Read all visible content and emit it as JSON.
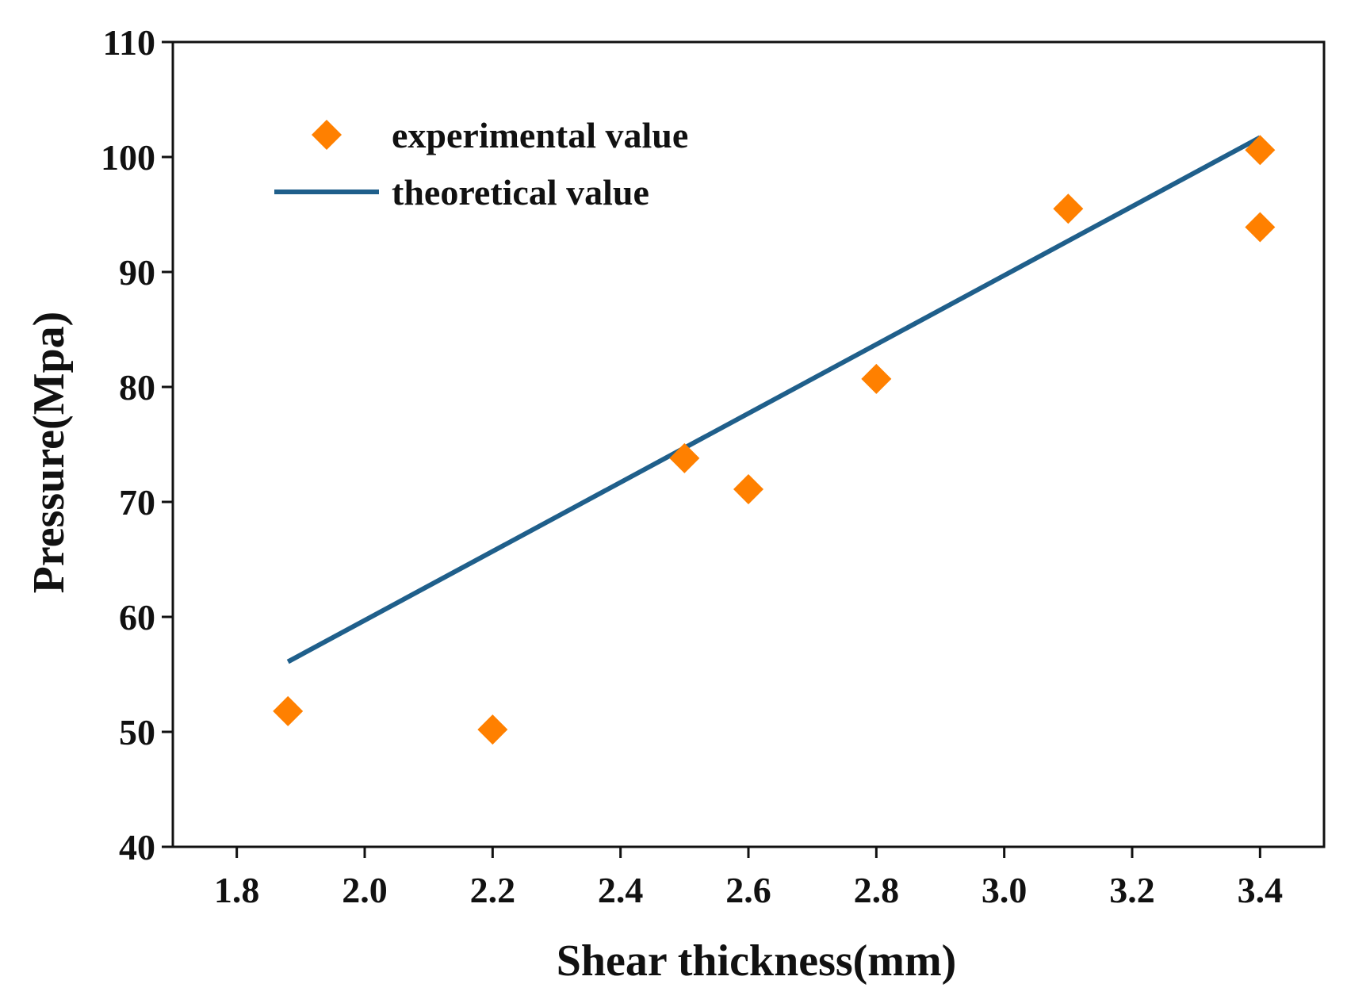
{
  "chart_data": {
    "type": "scatter",
    "title": "",
    "xlabel": "Shear thickness(mm)",
    "ylabel": "Pressure(Mpa)",
    "xlim": [
      1.7,
      3.5
    ],
    "ylim": [
      40,
      110
    ],
    "xticks": [
      1.8,
      2.0,
      2.2,
      2.4,
      2.6,
      2.8,
      3.0,
      3.2,
      3.4
    ],
    "xtick_labels": [
      "1.8",
      "2.0",
      "2.2",
      "2.4",
      "2.6",
      "2.8",
      "3.0",
      "3.2",
      "3.4"
    ],
    "yticks": [
      40,
      50,
      60,
      70,
      80,
      90,
      100,
      110
    ],
    "ytick_labels": [
      "40",
      "50",
      "60",
      "70",
      "80",
      "90",
      "100",
      "110"
    ],
    "grid": false,
    "legend_position": "top-left",
    "series": [
      {
        "name": "experimental value",
        "kind": "scatter",
        "marker": "diamond",
        "color": "#ff8000",
        "x": [
          1.88,
          2.2,
          2.5,
          2.6,
          2.8,
          3.1,
          3.4,
          3.4
        ],
        "y": [
          51.8,
          50.2,
          73.8,
          71.1,
          80.7,
          95.5,
          100.6,
          93.9
        ]
      },
      {
        "name": "theoretical value",
        "kind": "line",
        "color": "#1f5f8b",
        "x": [
          1.88,
          3.4
        ],
        "y": [
          56.1,
          101.7
        ]
      }
    ]
  }
}
